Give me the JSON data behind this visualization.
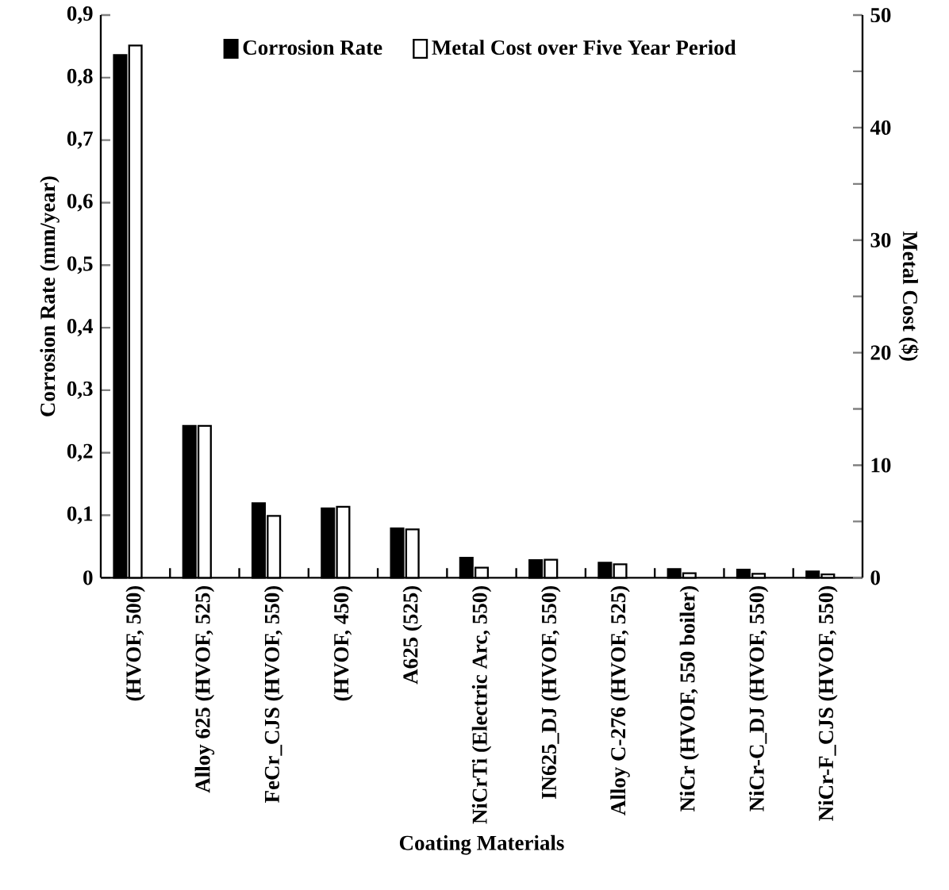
{
  "chart_data": {
    "type": "bar",
    "categories": [
      "(HVOF, 500)",
      "Alloy 625 (HVOF, 525)",
      "FeCr_CJS (HVOF, 550)",
      "(HVOF, 450)",
      "A625 (525)",
      "NiCrTi (Electric Arc, 550)",
      "IN625_DJ (HVOF, 550)",
      "Alloy C-276 (HVOF, 525)",
      "NiCr (HVOF, 550 boiler)",
      "NiCr-C_DJ (HVOF, 550)",
      "NiCr-F_CJS (HVOF, 550)"
    ],
    "series": [
      {
        "name": "Corrosion Rate",
        "color": "#000000",
        "values": [
          0.836,
          0.243,
          0.119,
          0.111,
          0.079,
          0.032,
          0.028,
          0.024,
          0.014,
          0.013,
          0.01
        ]
      },
      {
        "name": "Metal Cost over Five Year Period",
        "color": "#ffffff",
        "axis": "y2",
        "values": [
          47.3,
          13.5,
          5.5,
          6.3,
          4.3,
          0.9,
          1.6,
          1.2,
          0.4,
          0.35,
          0.3
        ]
      }
    ],
    "xlabel": "Coating Materials",
    "ylabel": "Corrosion Rate (mm/year)",
    "y2label": "Metal Cost ($)",
    "ylim": [
      0,
      0.9
    ],
    "yticks": [
      0,
      {
        "value": 0.1,
        "label": "0,1"
      },
      {
        "value": 0.2,
        "label": "0,2"
      },
      {
        "value": 0.3,
        "label": "0,3"
      },
      {
        "value": 0.4,
        "label": "0,4"
      },
      {
        "value": 0.5,
        "label": "0,5"
      },
      {
        "value": 0.6,
        "label": "0,6"
      },
      {
        "value": 0.7,
        "label": "0,7"
      },
      {
        "value": 0.8,
        "label": "0,8"
      },
      {
        "value": 0.9,
        "label": "0,9"
      }
    ],
    "y2lim": [
      0,
      50
    ],
    "y2ticks": [
      0,
      {
        "value": 5,
        "label": null
      },
      10,
      {
        "value": 15,
        "label": null
      },
      20,
      {
        "value": 25,
        "label": null
      },
      30,
      {
        "value": 35,
        "label": null
      },
      40,
      {
        "value": 45,
        "label": null
      },
      50
    ],
    "legend": "top",
    "grid": false
  }
}
